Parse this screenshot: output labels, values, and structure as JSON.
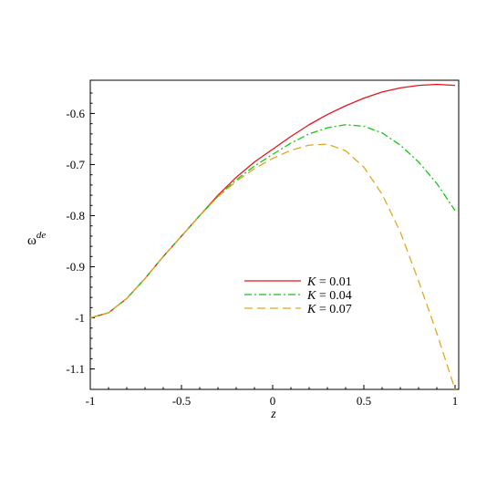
{
  "chart_data": {
    "type": "line",
    "title": "",
    "xlabel": "z",
    "ylabel": "ω",
    "ylabel_superscript": "de",
    "xlim": [
      -1,
      1.02
    ],
    "ylim": [
      -1.14,
      -0.535
    ],
    "x_ticks": [
      -1,
      -0.5,
      0,
      0.5,
      1
    ],
    "x_tick_labels": [
      "-1",
      "-0.5",
      "0",
      "0.5",
      "1"
    ],
    "y_ticks": [
      -1.1,
      -1,
      -0.9,
      -0.8,
      -0.7,
      -0.6
    ],
    "y_tick_labels": [
      "-1.1",
      "-1",
      "-0.9",
      "-0.8",
      "-0.7",
      "-0.6"
    ],
    "grid": false,
    "legend_position": "center-right",
    "series": [
      {
        "name": "K = 0.01",
        "legend_var": "K",
        "legend_value": "= 0.01",
        "color": "#e8141b",
        "dash": "solid",
        "x": [
          -1,
          -0.9,
          -0.8,
          -0.7,
          -0.6,
          -0.5,
          -0.4,
          -0.3,
          -0.2,
          -0.1,
          0,
          0.1,
          0.2,
          0.3,
          0.4,
          0.5,
          0.6,
          0.7,
          0.8,
          0.9,
          1
        ],
        "y": [
          -1.0,
          -0.99,
          -0.962,
          -0.923,
          -0.88,
          -0.84,
          -0.8,
          -0.76,
          -0.725,
          -0.695,
          -0.67,
          -0.645,
          -0.622,
          -0.602,
          -0.585,
          -0.57,
          -0.558,
          -0.55,
          -0.545,
          -0.543,
          -0.545
        ]
      },
      {
        "name": "K = 0.04",
        "legend_var": "K",
        "legend_value": "= 0.04",
        "color": "#14c814",
        "dash": "dashdot",
        "x": [
          -1,
          -0.9,
          -0.8,
          -0.7,
          -0.6,
          -0.5,
          -0.4,
          -0.3,
          -0.2,
          -0.1,
          0,
          0.1,
          0.2,
          0.3,
          0.4,
          0.5,
          0.6,
          0.7,
          0.8,
          0.9,
          1
        ],
        "y": [
          -1.0,
          -0.99,
          -0.962,
          -0.923,
          -0.88,
          -0.84,
          -0.8,
          -0.762,
          -0.73,
          -0.703,
          -0.68,
          -0.658,
          -0.64,
          -0.628,
          -0.622,
          -0.625,
          -0.638,
          -0.662,
          -0.695,
          -0.737,
          -0.79
        ]
      },
      {
        "name": "K = 0.07",
        "legend_var": "K",
        "legend_value": "= 0.07",
        "color": "#e0a820",
        "dash": "dashed",
        "x": [
          -1,
          -0.9,
          -0.8,
          -0.7,
          -0.6,
          -0.5,
          -0.4,
          -0.3,
          -0.2,
          -0.1,
          0,
          0.1,
          0.2,
          0.3,
          0.4,
          0.5,
          0.6,
          0.7,
          0.8,
          0.9,
          1
        ],
        "y": [
          -1.0,
          -0.99,
          -0.962,
          -0.923,
          -0.88,
          -0.84,
          -0.8,
          -0.763,
          -0.733,
          -0.708,
          -0.688,
          -0.672,
          -0.662,
          -0.66,
          -0.673,
          -0.705,
          -0.758,
          -0.832,
          -0.928,
          -1.03,
          -1.14
        ]
      }
    ]
  }
}
